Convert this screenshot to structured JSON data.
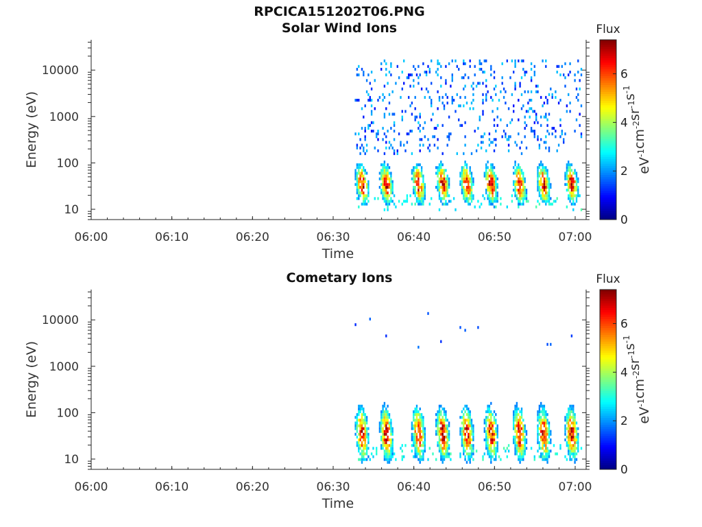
{
  "title": "RPCICA151202T06.PNG",
  "panels": [
    {
      "name": "solar",
      "subtitle": "Solar Wind Ions"
    },
    {
      "name": "cometary",
      "subtitle": "Cometary Ions"
    }
  ],
  "xlabel": "Time",
  "ylabel": "Energy (eV)",
  "colorbar": {
    "title": "Flux",
    "unit": "eV-1cm-2sr-1s-1",
    "range": [
      0,
      7.4
    ],
    "ticks": [
      "0",
      "2",
      "4",
      "6"
    ]
  },
  "x_ticks": [
    "06:00",
    "06:10",
    "06:20",
    "06:30",
    "06:40",
    "06:50",
    "07:00"
  ],
  "y_ticks": [
    "10",
    "100",
    "1000",
    "10000"
  ],
  "chart_data": [
    {
      "type": "heatmap",
      "title": "Solar Wind Ions",
      "xlabel": "Time",
      "ylabel": "Energy (eV)",
      "xlim": [
        "06:00",
        "07:01"
      ],
      "ylim": [
        6,
        45000
      ],
      "yscale": "log",
      "data_start": "06:32:40",
      "colorbar_range": [
        0,
        7.4
      ],
      "peak_energy_eV": 35,
      "bursts": [
        "06:33:30",
        "06:36:30",
        "06:40:30",
        "06:43:30",
        "06:46:30",
        "06:49:30",
        "06:53:00",
        "06:56:00",
        "06:59:30"
      ],
      "features": "sparse low-flux counts (flux ~1-2) from ~200 eV to ~15000 eV; periodic bursts peaking ~35 eV (flux up to ~7)"
    },
    {
      "type": "heatmap",
      "title": "Cometary Ions",
      "xlabel": "Time",
      "ylabel": "Energy (eV)",
      "xlim": [
        "06:00",
        "07:01"
      ],
      "ylim": [
        6,
        45000
      ],
      "yscale": "log",
      "data_start": "06:32:40",
      "colorbar_range": [
        0,
        7.4
      ],
      "peak_energy_eV": 35,
      "bursts": [
        "06:33:30",
        "06:36:30",
        "06:40:30",
        "06:43:30",
        "06:46:30",
        "06:49:30",
        "06:53:00",
        "06:56:00",
        "06:59:30"
      ],
      "features": "strong bursts 20-60 eV (flux up to ~7), extending up to ~1000 eV; rare counts near 3000-14000 eV"
    }
  ]
}
